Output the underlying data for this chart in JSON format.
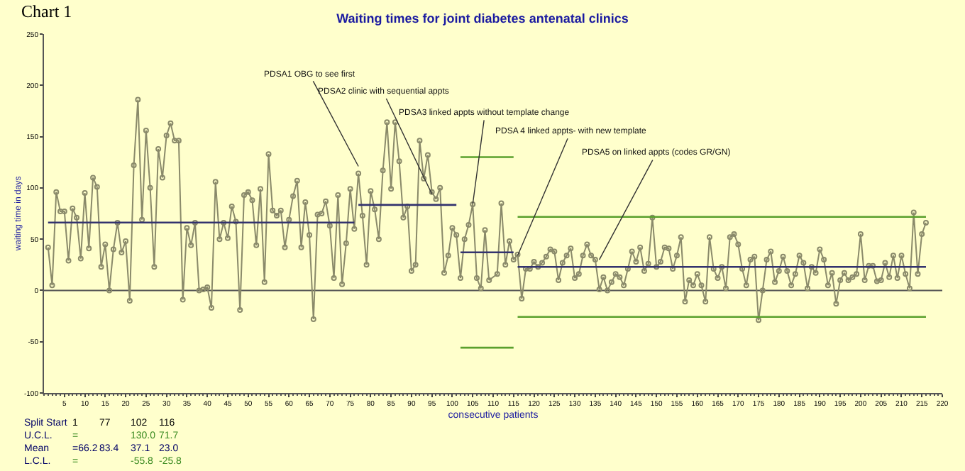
{
  "chart_data": {
    "type": "line",
    "title": "Waiting times for joint diabetes antenatal clinics",
    "xlabel": "consecutive patients",
    "ylabel": "waiting time in days",
    "xlim": [
      0,
      220
    ],
    "xticks": [
      5,
      10,
      15,
      20,
      25,
      30,
      35,
      40,
      45,
      50,
      55,
      60,
      65,
      70,
      75,
      80,
      85,
      90,
      95,
      100,
      105,
      110,
      115,
      120,
      125,
      130,
      135,
      140,
      145,
      150,
      155,
      160,
      165,
      170,
      175,
      180,
      185,
      190,
      195,
      200,
      205,
      210,
      215,
      220
    ],
    "ylim": [
      -100,
      250
    ],
    "yticks": [
      -100,
      -50,
      0,
      50,
      100,
      150,
      200,
      250
    ],
    "grid": false,
    "series": [
      {
        "color": "#8a8a6a",
        "marker": "circle",
        "x": [
          1,
          2,
          3,
          4,
          5,
          6,
          7,
          8,
          9,
          10,
          11,
          12,
          13,
          14,
          15,
          16,
          17,
          18,
          19,
          20,
          21,
          22,
          23,
          24,
          25,
          26,
          27,
          28,
          29,
          30,
          31,
          32,
          33,
          34,
          35,
          36,
          37,
          38,
          39,
          40,
          41,
          42,
          43,
          44,
          45,
          46,
          47,
          48,
          49,
          50,
          51,
          52,
          53,
          54,
          55,
          56,
          57,
          58,
          59,
          60,
          61,
          62,
          63,
          64,
          65,
          66,
          67,
          68,
          69,
          70,
          71,
          72,
          73,
          74,
          75,
          76,
          77,
          78,
          79,
          80,
          81,
          82,
          83,
          84,
          85,
          86,
          87,
          88,
          89,
          90,
          91,
          92,
          93,
          94,
          95,
          96,
          97,
          98,
          99,
          100,
          101,
          102,
          103,
          104,
          105,
          106,
          107,
          108,
          109,
          111,
          112,
          113,
          114,
          115,
          116,
          117,
          118,
          119,
          120,
          121,
          122,
          123,
          124,
          125,
          126,
          127,
          128,
          129,
          130,
          131,
          132,
          133,
          134,
          135,
          136,
          137,
          138,
          139,
          140,
          141,
          142,
          143,
          144,
          145,
          146,
          147,
          148,
          149,
          150,
          151,
          152,
          153,
          154,
          155,
          156,
          157,
          158,
          159,
          160,
          161,
          162,
          163,
          164,
          165,
          166,
          167,
          168,
          169,
          170,
          171,
          172,
          173,
          174,
          175,
          176,
          177,
          178,
          179,
          180,
          181,
          182,
          183,
          184,
          185,
          186,
          187,
          188,
          189,
          190,
          191,
          192,
          193,
          194,
          195,
          196,
          197,
          198,
          199,
          200,
          201,
          202,
          203,
          204,
          205,
          206,
          207,
          208,
          209,
          210,
          211,
          212,
          213,
          214,
          215,
          216
        ],
        "values": [
          42,
          5,
          96,
          77,
          77,
          29,
          80,
          71,
          31,
          95,
          41,
          110,
          101,
          23,
          45,
          0,
          40,
          66,
          37,
          48,
          -10,
          122,
          186,
          69,
          156,
          100,
          23,
          138,
          110,
          151,
          163,
          146,
          146,
          -9,
          61,
          44,
          66,
          0,
          1,
          3,
          -17,
          106,
          50,
          66,
          51,
          82,
          67,
          -19,
          93,
          96,
          88,
          44,
          99,
          8,
          133,
          78,
          73,
          78,
          42,
          69,
          92,
          107,
          42,
          86,
          54,
          -28,
          74,
          75,
          87,
          63,
          12,
          93,
          6,
          46,
          99,
          60,
          114,
          73,
          25,
          97,
          79,
          50,
          117,
          164,
          99,
          164,
          126,
          71,
          82,
          19,
          25,
          146,
          109,
          132,
          96,
          89,
          100,
          17,
          34,
          61,
          54,
          12,
          50,
          64,
          84,
          12,
          2,
          59,
          10,
          16,
          85,
          25,
          48,
          30,
          35,
          -8,
          21,
          21,
          28,
          23,
          27,
          33,
          40,
          38,
          10,
          27,
          34,
          41,
          12,
          16,
          34,
          45,
          34,
          30,
          1,
          13,
          0,
          8,
          16,
          13,
          5,
          21,
          38,
          28,
          42,
          19,
          26,
          71,
          23,
          28,
          42,
          41,
          21,
          34,
          52,
          -11,
          10,
          5,
          16,
          5,
          -11,
          52,
          21,
          12,
          23,
          2,
          52,
          55,
          45,
          21,
          5,
          30,
          33,
          -29,
          0,
          30,
          38,
          8,
          19,
          33,
          19,
          5,
          16,
          34,
          27,
          2,
          23,
          17,
          40,
          30,
          5,
          17,
          -13,
          10,
          17,
          10,
          13,
          16,
          55,
          10,
          24,
          24,
          9,
          10,
          27,
          13,
          34,
          12,
          34,
          16,
          2,
          76,
          16,
          55,
          66
        ]
      },
      {
        "color": "#33336e",
        "x": [
          1,
          76
        ],
        "values": [
          66.2,
          66.2
        ]
      },
      {
        "color": "#33336e",
        "x": [
          77,
          101
        ],
        "values": [
          83.4,
          83.4
        ]
      },
      {
        "color": "#33336e",
        "x": [
          102,
          115
        ],
        "values": [
          37.1,
          37.1
        ]
      },
      {
        "color": "#33336e",
        "x": [
          116,
          216
        ],
        "values": [
          23.0,
          23.0
        ]
      },
      {
        "color": "#5aa02c",
        "x": [
          102,
          115
        ],
        "values": [
          130.0,
          130.0
        ]
      },
      {
        "color": "#5aa02c",
        "x": [
          116,
          216
        ],
        "values": [
          71.7,
          71.7
        ]
      },
      {
        "color": "#5aa02c",
        "x": [
          102,
          115
        ],
        "values": [
          -55.8,
          -55.8
        ]
      },
      {
        "color": "#5aa02c",
        "x": [
          116,
          216
        ],
        "values": [
          -25.8,
          -25.8
        ]
      }
    ],
    "ref_lines": [
      {
        "axis": "y",
        "value": 0,
        "color": "#555555"
      }
    ],
    "annotations": [
      {
        "text": "PDSA1 OBG to see first",
        "x": 77,
        "y": 121
      },
      {
        "text": "PDSA2 clinic with sequential appts",
        "x": 95,
        "y": 94
      },
      {
        "text": "PDSA3 linked appts without template change",
        "x": 105,
        "y": 84
      },
      {
        "text": "PDSA 4 linked appts- with new template",
        "x": 116,
        "y": 34
      },
      {
        "text": "PDSA5 on linked appts (codes GR/GN)",
        "x": 136,
        "y": 30
      },
      "Chart 1",
      "Split Start",
      "1",
      "77",
      "102",
      "116",
      "U.C.L.",
      "=",
      "130.0",
      "71.7",
      "Mean",
      "=66.2",
      "83.4",
      "37.1",
      "23.0",
      "L.C.L.",
      "=",
      "-55.8",
      "-25.8"
    ]
  }
}
